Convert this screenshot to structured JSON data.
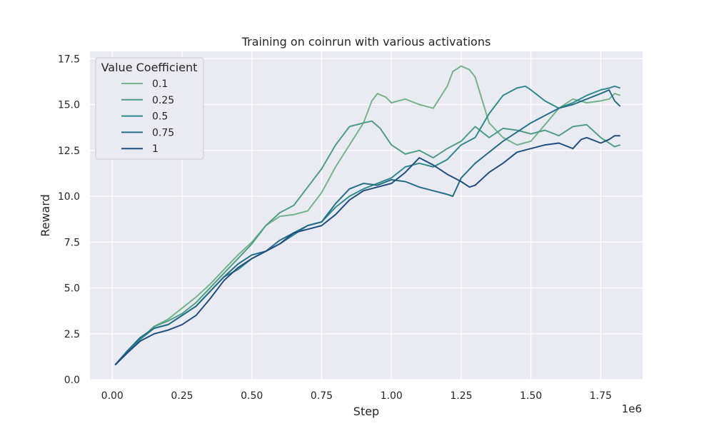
{
  "chart_data": {
    "type": "line",
    "title": "Training on coinrun with various activations",
    "xlabel": "Step",
    "ylabel": "Reward",
    "x_scale_label": "1e6",
    "xlim": [
      -0.08,
      1.9
    ],
    "ylim": [
      0,
      17.9
    ],
    "xticks": [
      0.0,
      0.25,
      0.5,
      0.75,
      1.0,
      1.25,
      1.5,
      1.75
    ],
    "xtick_labels": [
      "0.00",
      "0.25",
      "0.50",
      "0.75",
      "1.00",
      "1.25",
      "1.50",
      "1.75"
    ],
    "yticks": [
      0.0,
      2.5,
      5.0,
      7.5,
      10.0,
      12.5,
      15.0,
      17.5
    ],
    "ytick_labels": [
      "0.0",
      "2.5",
      "5.0",
      "7.5",
      "10.0",
      "12.5",
      "15.0",
      "17.5"
    ],
    "grid": true,
    "legend": {
      "title": "Value Coefficient",
      "placement": "upper-left"
    },
    "series": [
      {
        "name": "0.1",
        "color": "#74b48c",
        "points": [
          [
            0.01,
            0.8
          ],
          [
            0.05,
            1.4
          ],
          [
            0.1,
            2.2
          ],
          [
            0.15,
            2.9
          ],
          [
            0.2,
            3.3
          ],
          [
            0.25,
            3.9
          ],
          [
            0.3,
            4.5
          ],
          [
            0.35,
            5.2
          ],
          [
            0.4,
            6.0
          ],
          [
            0.45,
            6.8
          ],
          [
            0.5,
            7.5
          ],
          [
            0.55,
            8.4
          ],
          [
            0.6,
            8.9
          ],
          [
            0.65,
            9.0
          ],
          [
            0.7,
            9.2
          ],
          [
            0.75,
            10.2
          ],
          [
            0.8,
            11.6
          ],
          [
            0.85,
            12.8
          ],
          [
            0.9,
            14.0
          ],
          [
            0.93,
            15.2
          ],
          [
            0.95,
            15.6
          ],
          [
            0.98,
            15.4
          ],
          [
            1.0,
            15.1
          ],
          [
            1.05,
            15.3
          ],
          [
            1.1,
            15.0
          ],
          [
            1.15,
            14.8
          ],
          [
            1.2,
            16.0
          ],
          [
            1.22,
            16.8
          ],
          [
            1.25,
            17.1
          ],
          [
            1.28,
            16.9
          ],
          [
            1.3,
            16.5
          ],
          [
            1.32,
            15.5
          ],
          [
            1.35,
            14.0
          ],
          [
            1.4,
            13.2
          ],
          [
            1.45,
            12.8
          ],
          [
            1.5,
            13.0
          ],
          [
            1.55,
            13.9
          ],
          [
            1.6,
            14.8
          ],
          [
            1.65,
            15.3
          ],
          [
            1.7,
            15.1
          ],
          [
            1.75,
            15.2
          ],
          [
            1.78,
            15.3
          ],
          [
            1.8,
            15.6
          ],
          [
            1.82,
            15.5
          ]
        ]
      },
      {
        "name": "0.25",
        "color": "#4e9e86",
        "points": [
          [
            0.01,
            0.8
          ],
          [
            0.05,
            1.5
          ],
          [
            0.1,
            2.2
          ],
          [
            0.15,
            2.9
          ],
          [
            0.2,
            3.2
          ],
          [
            0.25,
            3.6
          ],
          [
            0.3,
            4.2
          ],
          [
            0.35,
            5.0
          ],
          [
            0.4,
            5.8
          ],
          [
            0.45,
            6.6
          ],
          [
            0.5,
            7.4
          ],
          [
            0.55,
            8.4
          ],
          [
            0.6,
            9.1
          ],
          [
            0.65,
            9.5
          ],
          [
            0.7,
            10.5
          ],
          [
            0.75,
            11.5
          ],
          [
            0.8,
            12.8
          ],
          [
            0.85,
            13.8
          ],
          [
            0.9,
            14.0
          ],
          [
            0.93,
            14.1
          ],
          [
            0.96,
            13.7
          ],
          [
            1.0,
            12.8
          ],
          [
            1.05,
            12.3
          ],
          [
            1.1,
            12.5
          ],
          [
            1.15,
            12.1
          ],
          [
            1.2,
            12.6
          ],
          [
            1.25,
            13.0
          ],
          [
            1.3,
            13.8
          ],
          [
            1.35,
            13.2
          ],
          [
            1.4,
            13.7
          ],
          [
            1.45,
            13.6
          ],
          [
            1.5,
            13.4
          ],
          [
            1.55,
            13.6
          ],
          [
            1.6,
            13.3
          ],
          [
            1.65,
            13.8
          ],
          [
            1.7,
            13.9
          ],
          [
            1.75,
            13.2
          ],
          [
            1.8,
            12.7
          ],
          [
            1.82,
            12.8
          ]
        ]
      },
      {
        "name": "0.5",
        "color": "#2f8a8c",
        "points": [
          [
            0.01,
            0.8
          ],
          [
            0.05,
            1.4
          ],
          [
            0.1,
            2.2
          ],
          [
            0.15,
            2.8
          ],
          [
            0.2,
            3.0
          ],
          [
            0.25,
            3.5
          ],
          [
            0.3,
            4.0
          ],
          [
            0.35,
            4.8
          ],
          [
            0.4,
            5.6
          ],
          [
            0.45,
            6.0
          ],
          [
            0.5,
            6.6
          ],
          [
            0.55,
            7.0
          ],
          [
            0.6,
            7.4
          ],
          [
            0.65,
            7.9
          ],
          [
            0.7,
            8.4
          ],
          [
            0.75,
            8.6
          ],
          [
            0.8,
            9.4
          ],
          [
            0.85,
            10.0
          ],
          [
            0.9,
            10.4
          ],
          [
            0.95,
            10.7
          ],
          [
            1.0,
            11.0
          ],
          [
            1.05,
            11.6
          ],
          [
            1.1,
            11.8
          ],
          [
            1.15,
            11.6
          ],
          [
            1.2,
            12.0
          ],
          [
            1.25,
            12.8
          ],
          [
            1.3,
            13.2
          ],
          [
            1.35,
            14.5
          ],
          [
            1.4,
            15.5
          ],
          [
            1.45,
            15.9
          ],
          [
            1.48,
            16.0
          ],
          [
            1.5,
            15.8
          ],
          [
            1.55,
            15.2
          ],
          [
            1.6,
            14.8
          ],
          [
            1.65,
            15.1
          ],
          [
            1.7,
            15.5
          ],
          [
            1.75,
            15.8
          ],
          [
            1.78,
            15.9
          ],
          [
            1.8,
            16.0
          ],
          [
            1.82,
            15.9
          ]
        ]
      },
      {
        "name": "0.75",
        "color": "#236e87",
        "points": [
          [
            0.01,
            0.8
          ],
          [
            0.05,
            1.5
          ],
          [
            0.1,
            2.3
          ],
          [
            0.15,
            2.8
          ],
          [
            0.2,
            3.0
          ],
          [
            0.25,
            3.5
          ],
          [
            0.3,
            4.0
          ],
          [
            0.35,
            4.8
          ],
          [
            0.4,
            5.6
          ],
          [
            0.45,
            6.3
          ],
          [
            0.5,
            6.8
          ],
          [
            0.55,
            7.0
          ],
          [
            0.6,
            7.6
          ],
          [
            0.65,
            8.0
          ],
          [
            0.7,
            8.4
          ],
          [
            0.75,
            8.6
          ],
          [
            0.8,
            9.6
          ],
          [
            0.85,
            10.4
          ],
          [
            0.9,
            10.7
          ],
          [
            0.95,
            10.6
          ],
          [
            1.0,
            10.9
          ],
          [
            1.05,
            10.8
          ],
          [
            1.1,
            10.5
          ],
          [
            1.15,
            10.3
          ],
          [
            1.2,
            10.1
          ],
          [
            1.22,
            10.0
          ],
          [
            1.25,
            11.0
          ],
          [
            1.3,
            11.8
          ],
          [
            1.35,
            12.4
          ],
          [
            1.4,
            13.0
          ],
          [
            1.45,
            13.5
          ],
          [
            1.5,
            14.0
          ],
          [
            1.55,
            14.4
          ],
          [
            1.6,
            14.8
          ],
          [
            1.65,
            15.0
          ],
          [
            1.7,
            15.3
          ],
          [
            1.75,
            15.6
          ],
          [
            1.78,
            15.8
          ],
          [
            1.8,
            15.2
          ],
          [
            1.82,
            14.9
          ]
        ]
      },
      {
        "name": "1",
        "color": "#1f4e82",
        "points": [
          [
            0.01,
            0.8
          ],
          [
            0.05,
            1.4
          ],
          [
            0.1,
            2.1
          ],
          [
            0.15,
            2.5
          ],
          [
            0.2,
            2.7
          ],
          [
            0.25,
            3.0
          ],
          [
            0.3,
            3.5
          ],
          [
            0.35,
            4.4
          ],
          [
            0.4,
            5.4
          ],
          [
            0.45,
            6.1
          ],
          [
            0.5,
            6.6
          ],
          [
            0.55,
            7.0
          ],
          [
            0.6,
            7.4
          ],
          [
            0.65,
            8.0
          ],
          [
            0.7,
            8.2
          ],
          [
            0.75,
            8.4
          ],
          [
            0.8,
            9.0
          ],
          [
            0.85,
            9.8
          ],
          [
            0.9,
            10.3
          ],
          [
            0.95,
            10.5
          ],
          [
            1.0,
            10.7
          ],
          [
            1.05,
            11.3
          ],
          [
            1.1,
            12.1
          ],
          [
            1.15,
            11.7
          ],
          [
            1.2,
            11.2
          ],
          [
            1.25,
            10.8
          ],
          [
            1.28,
            10.5
          ],
          [
            1.3,
            10.6
          ],
          [
            1.35,
            11.3
          ],
          [
            1.4,
            11.8
          ],
          [
            1.45,
            12.4
          ],
          [
            1.5,
            12.6
          ],
          [
            1.55,
            12.8
          ],
          [
            1.6,
            12.9
          ],
          [
            1.65,
            12.6
          ],
          [
            1.68,
            13.1
          ],
          [
            1.7,
            13.2
          ],
          [
            1.75,
            12.9
          ],
          [
            1.78,
            13.1
          ],
          [
            1.8,
            13.3
          ],
          [
            1.82,
            13.3
          ]
        ]
      }
    ]
  }
}
